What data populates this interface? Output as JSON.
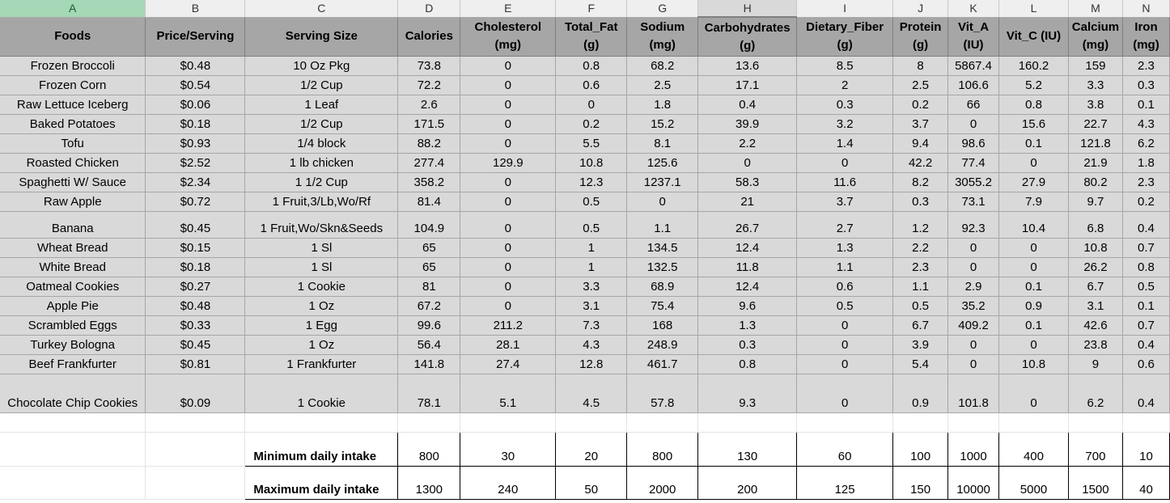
{
  "column_letters": [
    "A",
    "B",
    "C",
    "D",
    "E",
    "F",
    "G",
    "H",
    "I",
    "J",
    "K",
    "L",
    "M",
    "N"
  ],
  "headers": [
    "Foods",
    "Price/Serving",
    "Serving Size",
    "Calories",
    "Cholesterol (mg)",
    "Total_Fat (g)",
    "Sodium (mg)",
    "Carbohydrates (g)",
    "Dietary_Fiber (g)",
    "Protein (g)",
    "Vit_A (IU)",
    "Vit_C (IU)",
    "Calcium (mg)",
    "Iron (mg)"
  ],
  "rows": [
    [
      "Frozen Broccoli",
      "$0.48",
      "10 Oz Pkg",
      "73.8",
      "0",
      "0.8",
      "68.2",
      "13.6",
      "8.5",
      "8",
      "5867.4",
      "160.2",
      "159",
      "2.3"
    ],
    [
      "Frozen Corn",
      "$0.54",
      "1/2 Cup",
      "72.2",
      "0",
      "0.6",
      "2.5",
      "17.1",
      "2",
      "2.5",
      "106.6",
      "5.2",
      "3.3",
      "0.3"
    ],
    [
      "Raw Lettuce Iceberg",
      "$0.06",
      "1 Leaf",
      "2.6",
      "0",
      "0",
      "1.8",
      "0.4",
      "0.3",
      "0.2",
      "66",
      "0.8",
      "3.8",
      "0.1"
    ],
    [
      "Baked Potatoes",
      "$0.18",
      "1/2 Cup",
      "171.5",
      "0",
      "0.2",
      "15.2",
      "39.9",
      "3.2",
      "3.7",
      "0",
      "15.6",
      "22.7",
      "4.3"
    ],
    [
      "Tofu",
      "$0.93",
      "1/4 block",
      "88.2",
      "0",
      "5.5",
      "8.1",
      "2.2",
      "1.4",
      "9.4",
      "98.6",
      "0.1",
      "121.8",
      "6.2"
    ],
    [
      "Roasted Chicken",
      "$2.52",
      "1 lb chicken",
      "277.4",
      "129.9",
      "10.8",
      "125.6",
      "0",
      "0",
      "42.2",
      "77.4",
      "0",
      "21.9",
      "1.8"
    ],
    [
      "Spaghetti W/ Sauce",
      "$2.34",
      "1 1/2 Cup",
      "358.2",
      "0",
      "12.3",
      "1237.1",
      "58.3",
      "11.6",
      "8.2",
      "3055.2",
      "27.9",
      "80.2",
      "2.3"
    ],
    [
      "Raw Apple",
      "$0.72",
      "1 Fruit,3/Lb,Wo/Rf",
      "81.4",
      "0",
      "0.5",
      "0",
      "21",
      "3.7",
      "0.3",
      "73.1",
      "7.9",
      "9.7",
      "0.2"
    ],
    [
      "Banana",
      "$0.45",
      "1 Fruit,Wo/Skn&Seeds",
      "104.9",
      "0",
      "0.5",
      "1.1",
      "26.7",
      "2.7",
      "1.2",
      "92.3",
      "10.4",
      "6.8",
      "0.4"
    ],
    [
      "Wheat Bread",
      "$0.15",
      "1 Sl",
      "65",
      "0",
      "1",
      "134.5",
      "12.4",
      "1.3",
      "2.2",
      "0",
      "0",
      "10.8",
      "0.7"
    ],
    [
      "White Bread",
      "$0.18",
      "1 Sl",
      "65",
      "0",
      "1",
      "132.5",
      "11.8",
      "1.1",
      "2.3",
      "0",
      "0",
      "26.2",
      "0.8"
    ],
    [
      "Oatmeal Cookies",
      "$0.27",
      "1 Cookie",
      "81",
      "0",
      "3.3",
      "68.9",
      "12.4",
      "0.6",
      "1.1",
      "2.9",
      "0.1",
      "6.7",
      "0.5"
    ],
    [
      "Apple Pie",
      "$0.48",
      "1 Oz",
      "67.2",
      "0",
      "3.1",
      "75.4",
      "9.6",
      "0.5",
      "0.5",
      "35.2",
      "0.9",
      "3.1",
      "0.1"
    ],
    [
      "Scrambled Eggs",
      "$0.33",
      "1 Egg",
      "99.6",
      "211.2",
      "7.3",
      "168",
      "1.3",
      "0",
      "6.7",
      "409.2",
      "0.1",
      "42.6",
      "0.7"
    ],
    [
      "Turkey Bologna",
      "$0.45",
      "1 Oz",
      "56.4",
      "28.1",
      "4.3",
      "248.9",
      "0.3",
      "0",
      "3.9",
      "0",
      "0",
      "23.8",
      "0.4"
    ],
    [
      "Beef Frankfurter",
      "$0.81",
      "1 Frankfurter",
      "141.8",
      "27.4",
      "12.8",
      "461.7",
      "0.8",
      "0",
      "5.4",
      "0",
      "10.8",
      "9",
      "0.6"
    ],
    [
      "Chocolate Chip Cookies",
      "$0.09",
      "1 Cookie",
      "78.1",
      "5.1",
      "4.5",
      "57.8",
      "9.3",
      "0",
      "0.9",
      "101.8",
      "0",
      "6.2",
      "0.4"
    ]
  ],
  "limits": [
    {
      "label": "Minimum daily intake",
      "values": [
        "800",
        "30",
        "20",
        "800",
        "130",
        "60",
        "100",
        "1000",
        "400",
        "700",
        "10"
      ]
    },
    {
      "label": "Maximum daily intake",
      "values": [
        "1300",
        "240",
        "50",
        "2000",
        "200",
        "125",
        "150",
        "10000",
        "5000",
        "1500",
        "40"
      ]
    }
  ]
}
